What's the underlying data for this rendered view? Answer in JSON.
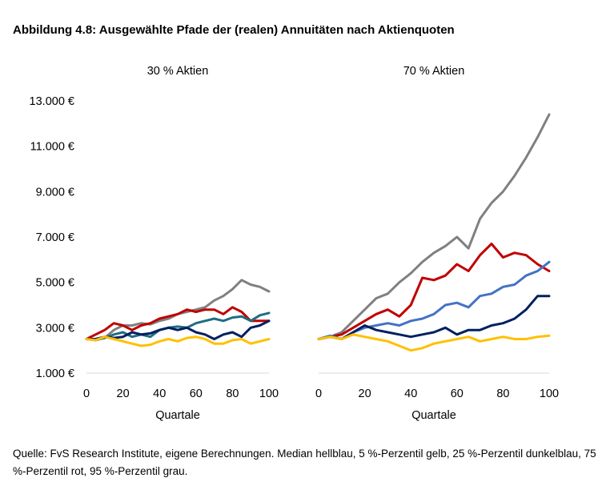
{
  "title": "Abbildung 4.8: Ausgewählte Pfade der (realen) Annuitäten nach Aktienquoten",
  "source": "Quelle: FvS Research Institute, eigene Berechnungen. Median hellblau, 5 %-Perzentil gelb, 25 %-Perzentil dunkelblau, 75 %-Perzentil rot, 95 %-Perzentil grau.",
  "colors": {
    "median": "#4472c4",
    "p5": "#ffc000",
    "p25": "#002060",
    "p75": "#c00000",
    "p95": "#808080",
    "teal": "#1f6e82"
  },
  "y_ticks": [
    "13.000 €",
    "11.000 €",
    "9.000 €",
    "7.000 €",
    "5.000 €",
    "3.000 €",
    "1.000 €"
  ],
  "chart_data": [
    {
      "type": "line",
      "subtitle": "30 % Aktien",
      "xlabel": "Quartale",
      "ylabel": "",
      "x_ticks": [
        "0",
        "20",
        "40",
        "60",
        "80",
        "100"
      ],
      "xlim": [
        0,
        100
      ],
      "ylim": [
        1000,
        13000
      ],
      "grid": false,
      "x": [
        0,
        5,
        10,
        15,
        20,
        25,
        30,
        35,
        40,
        45,
        50,
        55,
        60,
        65,
        70,
        75,
        80,
        85,
        90,
        95,
        100
      ],
      "series": [
        {
          "color": "p95",
          "values": [
            2500,
            2450,
            2550,
            2900,
            3100,
            3100,
            3200,
            3150,
            3300,
            3400,
            3600,
            3700,
            3800,
            3900,
            4200,
            4400,
            4700,
            5100,
            4900,
            4800,
            4600
          ]
        },
        {
          "color": "p75",
          "values": [
            2500,
            2700,
            2900,
            3200,
            3100,
            2900,
            3100,
            3200,
            3400,
            3500,
            3600,
            3800,
            3700,
            3800,
            3800,
            3600,
            3900,
            3700,
            3300,
            3300,
            3300
          ]
        },
        {
          "color": "teal",
          "values": [
            2500,
            2500,
            2550,
            2700,
            2800,
            2600,
            2700,
            2600,
            2900,
            3000,
            3050,
            3000,
            3200,
            3300,
            3400,
            3300,
            3450,
            3500,
            3300,
            3550,
            3650
          ]
        },
        {
          "color": "p25",
          "values": [
            2500,
            2500,
            2600,
            2550,
            2600,
            2800,
            2700,
            2750,
            2900,
            3000,
            2900,
            3000,
            2800,
            2700,
            2500,
            2700,
            2800,
            2600,
            3000,
            3100,
            3300
          ]
        },
        {
          "color": "p5",
          "values": [
            2500,
            2450,
            2600,
            2500,
            2400,
            2300,
            2200,
            2250,
            2400,
            2500,
            2400,
            2550,
            2600,
            2500,
            2300,
            2300,
            2450,
            2500,
            2300,
            2400,
            2500
          ]
        }
      ]
    },
    {
      "type": "line",
      "subtitle": "70 % Aktien",
      "xlabel": "Quartale",
      "ylabel": "",
      "x_ticks": [
        "0",
        "20",
        "40",
        "60",
        "80",
        "100"
      ],
      "xlim": [
        0,
        100
      ],
      "ylim": [
        1000,
        13000
      ],
      "grid": false,
      "x": [
        0,
        5,
        10,
        15,
        20,
        25,
        30,
        35,
        40,
        45,
        50,
        55,
        60,
        65,
        70,
        75,
        80,
        85,
        90,
        95,
        100
      ],
      "series": [
        {
          "color": "p95",
          "values": [
            2500,
            2600,
            2800,
            3300,
            3800,
            4300,
            4500,
            5000,
            5400,
            5900,
            6300,
            6600,
            7000,
            6500,
            7800,
            8500,
            9000,
            9700,
            10500,
            11400,
            12400
          ]
        },
        {
          "color": "p75",
          "values": [
            2500,
            2600,
            2700,
            3000,
            3300,
            3600,
            3800,
            3500,
            4000,
            5200,
            5100,
            5300,
            5800,
            5500,
            6200,
            6700,
            6100,
            6300,
            6200,
            5800,
            5500
          ]
        },
        {
          "color": "median",
          "values": [
            2500,
            2650,
            2500,
            2800,
            3000,
            3100,
            3200,
            3100,
            3300,
            3400,
            3600,
            4000,
            4100,
            3900,
            4400,
            4500,
            4800,
            4900,
            5300,
            5500,
            5900
          ]
        },
        {
          "color": "p25",
          "values": [
            2500,
            2600,
            2500,
            2800,
            3100,
            2900,
            2800,
            2700,
            2600,
            2700,
            2800,
            3000,
            2700,
            2900,
            2900,
            3100,
            3200,
            3400,
            3800,
            4400,
            4400
          ]
        },
        {
          "color": "p5",
          "values": [
            2500,
            2600,
            2500,
            2700,
            2600,
            2500,
            2400,
            2200,
            2000,
            2100,
            2300,
            2400,
            2500,
            2600,
            2400,
            2500,
            2600,
            2500,
            2500,
            2600,
            2650
          ]
        }
      ]
    }
  ]
}
